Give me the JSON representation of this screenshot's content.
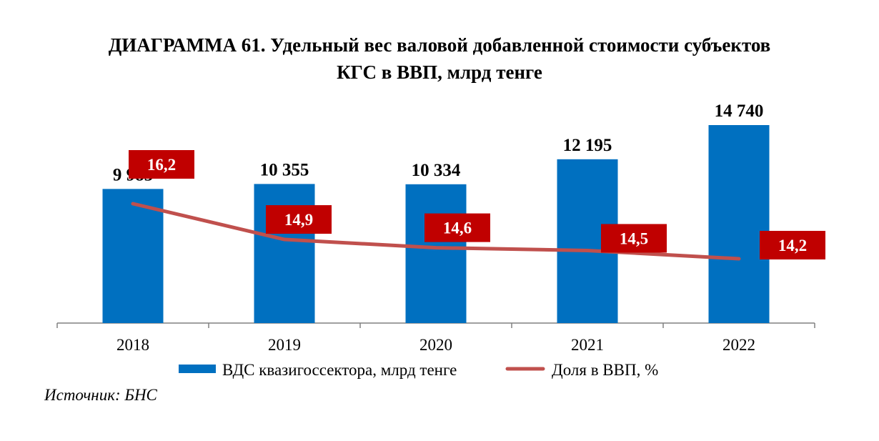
{
  "chart_data": {
    "title": "ДИАГРАММА 61. Удельный вес валовой добавленной стоимости субъектов",
    "title_line2": "КГС в ВВП, млрд тенге",
    "categories": [
      "2018",
      "2019",
      "2020",
      "2021",
      "2022"
    ],
    "series": [
      {
        "name": "ВДС квазигоссектора, млрд тенге",
        "type": "bar",
        "color": "#0070C0",
        "values": [
          9985,
          10355,
          10334,
          12195,
          14740
        ],
        "labels": [
          "9 985",
          "10 355",
          "10 334",
          "12 195",
          "14 740"
        ]
      },
      {
        "name": "Доля в ВВП, %",
        "type": "line",
        "color": "#C0504D",
        "label_bg": "#C00000",
        "values": [
          16.2,
          14.9,
          14.6,
          14.5,
          14.2
        ],
        "labels": [
          "16,2",
          "14,9",
          "14,6",
          "14,5",
          "14,2"
        ]
      }
    ],
    "legend_position": "bottom",
    "grid": false
  },
  "source": "Источник: БНС"
}
